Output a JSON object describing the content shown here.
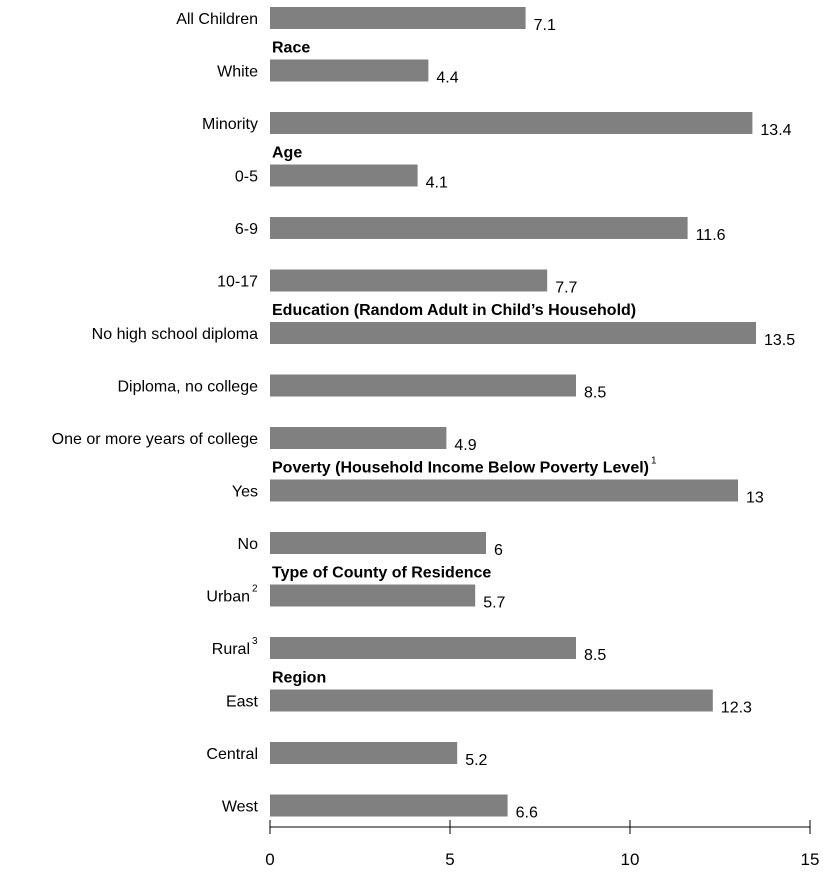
{
  "chart_data": {
    "type": "bar",
    "orientation": "horizontal",
    "title": "",
    "xlabel": "",
    "ylabel": "",
    "xlim": [
      0,
      15
    ],
    "xticks": [
      0,
      5,
      10,
      15
    ],
    "grid": false,
    "bar_color": "#808080",
    "categories": [
      {
        "label": "All Children",
        "value": 7.1
      },
      {
        "label": "White",
        "value": 4.4
      },
      {
        "label": "Minority",
        "value": 13.4
      },
      {
        "label": "0-5",
        "value": 4.1
      },
      {
        "label": "6-9",
        "value": 11.6
      },
      {
        "label": "10-17",
        "value": 7.7
      },
      {
        "label": "No high school diploma",
        "value": 13.5
      },
      {
        "label": "Diploma, no college",
        "value": 8.5
      },
      {
        "label": "One or more years of college",
        "value": 4.9
      },
      {
        "label": "Yes",
        "value": 13
      },
      {
        "label": "No",
        "value": 6
      },
      {
        "label": "Urban",
        "sup": "2",
        "value": 5.7
      },
      {
        "label": "Rural",
        "sup": "3",
        "value": 8.5
      },
      {
        "label": "East",
        "value": 12.3
      },
      {
        "label": "Central",
        "value": 5.2
      },
      {
        "label": "West",
        "value": 6.6
      }
    ],
    "value_labels": [
      "7.1",
      "4.4",
      "13.4",
      "4.1",
      "11.6",
      "7.7",
      "13.5",
      "8.5",
      "4.9",
      "13",
      "6",
      "5.7",
      "8.5",
      "12.3",
      "5.2",
      "6.6"
    ],
    "groups": [
      {
        "label": "Race",
        "before_index": 1
      },
      {
        "label": "Age",
        "before_index": 3
      },
      {
        "label": "Education (Random Adult in Child’s Household)",
        "before_index": 6
      },
      {
        "label": "Poverty (Household Income Below Poverty Level)",
        "sup": "1",
        "before_index": 9
      },
      {
        "label": "Type of County of Residence",
        "before_index": 11
      },
      {
        "label": "Region",
        "before_index": 13
      }
    ]
  }
}
